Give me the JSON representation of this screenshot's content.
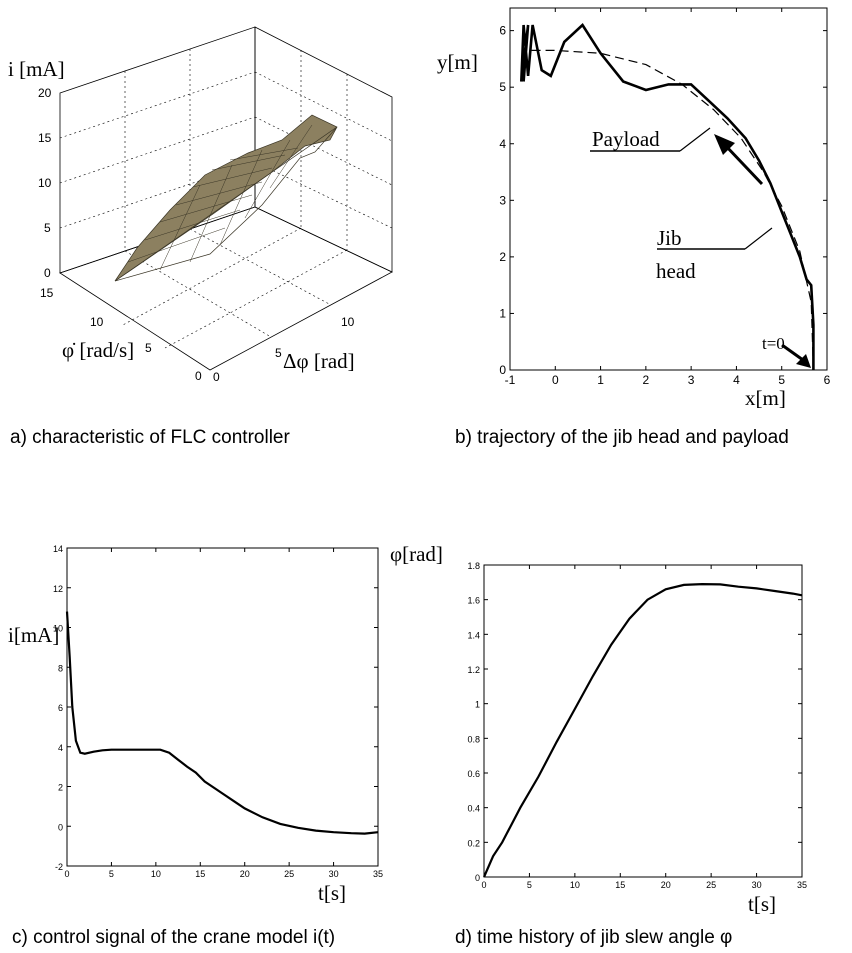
{
  "captions": {
    "a": "a) characteristic of FLC controller",
    "b": "b) trajectory of the jib head and payload",
    "c": "c) control signal of the crane model i(t)",
    "d": "d) time history of jib slew angle φ"
  },
  "chart_data": [
    {
      "id": "a",
      "type": "surface3d",
      "zlabel": "i [mA]",
      "ylabel": "φ̇  [rad/s]",
      "xlabel": "Δφ [rad]",
      "zlim": [
        0,
        20
      ],
      "z_ticks": [
        "0",
        "5",
        "10",
        "15",
        "20"
      ],
      "y_ticks": [
        "0",
        "5",
        "10",
        "15"
      ],
      "x_ticks": [
        "0",
        "5",
        "10"
      ],
      "surface_color": "#8c8060",
      "corners": [
        {
          "x": 0,
          "y": 15,
          "z": 0
        },
        {
          "x": 0,
          "y": 0,
          "z": 2
        },
        {
          "x": 15,
          "y": 0,
          "z": 15
        },
        {
          "x": 15,
          "y": 15,
          "z": 14
        }
      ]
    },
    {
      "id": "b",
      "type": "line",
      "xlabel": "x[m]",
      "ylabel": "y[m]",
      "xlim": [
        -1,
        6
      ],
      "ylim": [
        0,
        6.4
      ],
      "x_ticks": [
        "-1",
        "0",
        "1",
        "2",
        "3",
        "4",
        "5",
        "6"
      ],
      "y_ticks": [
        "0",
        "1",
        "2",
        "3",
        "4",
        "5",
        "6"
      ],
      "annotations": [
        "Payload",
        "Jib",
        "head",
        "t=0"
      ],
      "series": [
        {
          "style": "solid",
          "points": [
            [
              5.7,
              0
            ],
            [
              5.7,
              0.8
            ],
            [
              5.65,
              1.5
            ],
            [
              5.55,
              1.6
            ],
            [
              5.4,
              2.0
            ],
            [
              5.2,
              2.4
            ],
            [
              5.0,
              2.8
            ],
            [
              4.9,
              3.0
            ],
            [
              4.75,
              3.3
            ],
            [
              4.5,
              3.7
            ],
            [
              4.2,
              4.1
            ],
            [
              3.8,
              4.45
            ],
            [
              3.4,
              4.75
            ],
            [
              3.0,
              5.05
            ],
            [
              2.5,
              5.05
            ],
            [
              2.0,
              4.95
            ],
            [
              1.5,
              5.1
            ],
            [
              1.0,
              5.6
            ],
            [
              0.6,
              6.1
            ],
            [
              0.2,
              5.8
            ],
            [
              -0.1,
              5.2
            ],
            [
              -0.3,
              5.3
            ],
            [
              -0.5,
              6.1
            ],
            [
              -0.6,
              5.2
            ],
            [
              -0.7,
              6.1
            ],
            [
              -0.75,
              5.1
            ],
            [
              -0.6,
              6.1
            ],
            [
              -0.7,
              5.1
            ]
          ]
        },
        {
          "style": "dashed",
          "points": [
            [
              5.7,
              0
            ],
            [
              5.65,
              1.2
            ],
            [
              5.4,
              2.1
            ],
            [
              5.0,
              2.9
            ],
            [
              4.6,
              3.5
            ],
            [
              4.1,
              4.1
            ],
            [
              3.5,
              4.6
            ],
            [
              2.8,
              5.05
            ],
            [
              2.0,
              5.4
            ],
            [
              1.0,
              5.6
            ],
            [
              0.0,
              5.65
            ],
            [
              -0.6,
              5.65
            ]
          ]
        }
      ]
    },
    {
      "id": "c",
      "type": "line",
      "xlabel": "t[s]",
      "ylabel": "i[mA]",
      "xlim": [
        0,
        35
      ],
      "ylim": [
        -2,
        14
      ],
      "x_ticks": [
        "0",
        "5",
        "10",
        "15",
        "20",
        "25",
        "30",
        "35"
      ],
      "y_ticks": [
        "-2",
        "0",
        "2",
        "4",
        "6",
        "8",
        "10",
        "12",
        "14"
      ],
      "x": [
        0,
        0.3,
        0.6,
        1.0,
        1.5,
        2.0,
        3.0,
        4.0,
        5.0,
        7.0,
        9.0,
        10.5,
        11.5,
        12.5,
        13.5,
        14.5,
        15.5,
        16.5,
        17.5,
        19.0,
        20.0,
        22.0,
        24.0,
        26.0,
        28.0,
        30.0,
        32.0,
        33.5,
        35.0
      ],
      "values": [
        10.8,
        8.5,
        6.0,
        4.3,
        3.7,
        3.65,
        3.75,
        3.82,
        3.85,
        3.85,
        3.85,
        3.85,
        3.7,
        3.35,
        3.0,
        2.7,
        2.25,
        1.95,
        1.65,
        1.2,
        0.9,
        0.45,
        0.12,
        -0.08,
        -0.22,
        -0.3,
        -0.35,
        -0.37,
        -0.3
      ]
    },
    {
      "id": "d",
      "type": "line",
      "xlabel": "t[s]",
      "ylabel": "φ[rad]",
      "xlim": [
        0,
        35
      ],
      "ylim": [
        0,
        1.8
      ],
      "x_ticks": [
        "0",
        "5",
        "10",
        "15",
        "20",
        "25",
        "30",
        "35"
      ],
      "y_ticks": [
        "0",
        "0.2",
        "0.4",
        "0.6",
        "0.8",
        "1",
        "1.2",
        "1.4",
        "1.6",
        "1.8"
      ],
      "x": [
        0,
        1,
        2,
        4,
        6,
        8,
        10,
        12,
        14,
        16,
        18,
        20,
        22,
        24,
        26,
        28,
        30,
        32,
        34,
        35
      ],
      "values": [
        0,
        0.12,
        0.2,
        0.4,
        0.58,
        0.78,
        0.97,
        1.16,
        1.34,
        1.49,
        1.6,
        1.66,
        1.685,
        1.69,
        1.688,
        1.675,
        1.665,
        1.65,
        1.635,
        1.625
      ]
    }
  ]
}
